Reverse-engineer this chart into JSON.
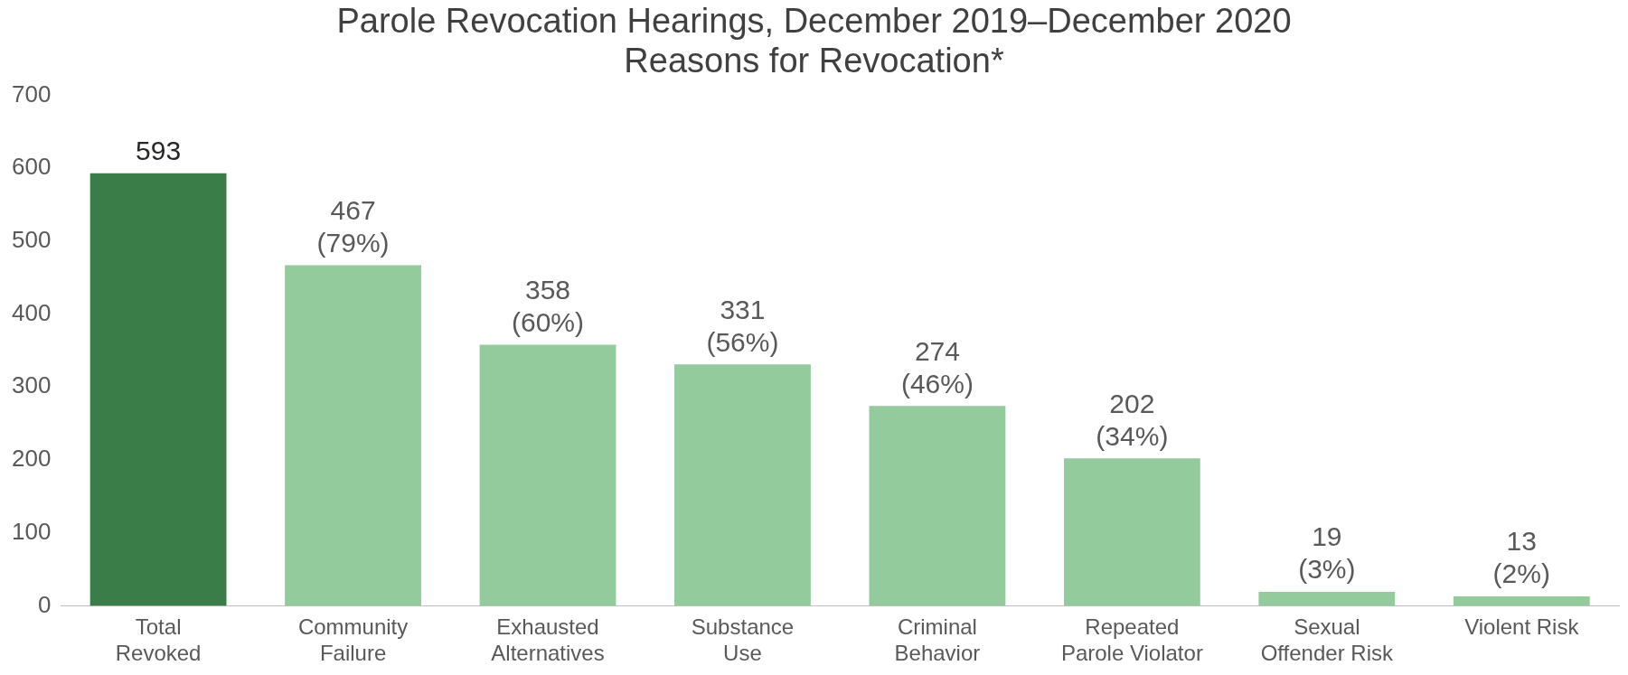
{
  "chart_data": {
    "type": "bar",
    "title": "Parole Revocation Hearings, December 2019–December 2020",
    "subtitle": "Reasons for Revocation*",
    "categories": [
      "Total\nRevoked",
      "Community\nFailure",
      "Exhausted\nAlternatives",
      "Substance\nUse",
      "Criminal\nBehavior",
      "Repeated\nParole Violator",
      "Sexual\nOffender Risk",
      "Violent Risk"
    ],
    "values": [
      593,
      467,
      358,
      331,
      274,
      202,
      19,
      13
    ],
    "colors": [
      "#3b7d48",
      "#93cb9c",
      "#93cb9c",
      "#93cb9c",
      "#93cb9c",
      "#93cb9c",
      "#93cb9c",
      "#93cb9c"
    ],
    "value_labels": [
      "593",
      "467\n(79%)",
      "358\n(60%)",
      "331\n(56%)",
      "274\n(46%)",
      "202\n(34%)",
      "19\n(3%)",
      "13\n(2%)"
    ],
    "ylim": [
      0,
      700
    ],
    "yticks": [
      0,
      100,
      200,
      300,
      400,
      500,
      600,
      700
    ],
    "grid": false,
    "legend": false
  }
}
